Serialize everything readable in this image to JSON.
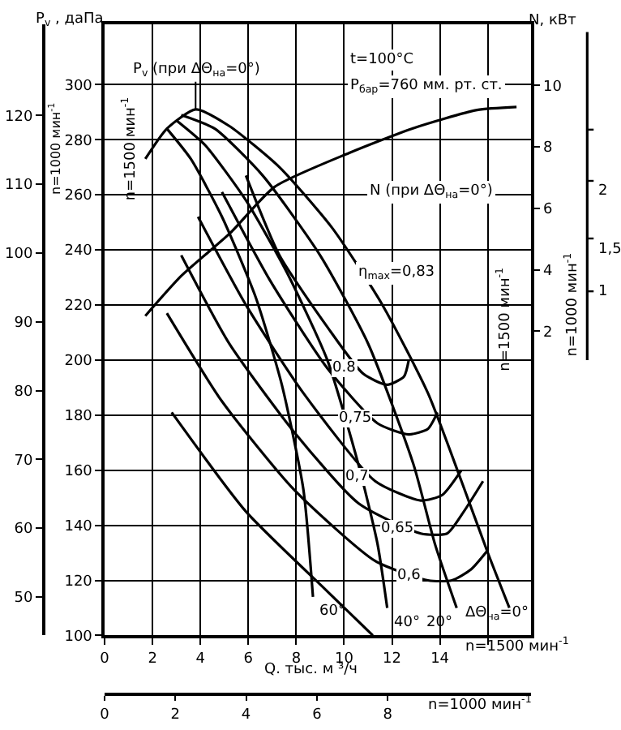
{
  "chart_data": {
    "type": "line",
    "xlabel": "Q. тыс. м ³/ч",
    "ylabel": "n=1500 мин$^{-1}$",
    "y2label": "n=1500 мин$^{-1}$",
    "y3label": "n=1000 мин$^{-1}$",
    "x2label": "n=1000 мин$^{-1}$",
    "xlim": [
      0,
      17.8
    ],
    "xticks": [
      0,
      2,
      4,
      6,
      8,
      10,
      12,
      14,
      {
        "value": 16,
        "label": null
      }
    ],
    "ylim": [
      100,
      322
    ],
    "yticks": [
      100,
      120,
      140,
      160,
      180,
      200,
      220,
      240,
      260,
      280,
      300
    ],
    "y2lim": [
      -7.9,
      12.0
    ],
    "y2ticks": [
      2,
      4,
      6,
      8,
      10
    ],
    "y3lim": [
      44.4,
      133.3
    ],
    "y3ticks": [
      50,
      60,
      70,
      80,
      90,
      100,
      110,
      120
    ],
    "x2lim": [
      0,
      12.05
    ],
    "x2ticks": [
      0,
      2,
      4,
      6,
      8
    ],
    "grid": true,
    "annotations": [
      "P$_{v}$ , даПа",
      "N, кВт",
      "n=1500 мин$^{-1}$",
      "t=100°C",
      "P$_{бар}$=760 мм. рт. ст.",
      "N (при ΔΘ$_{на}$=0°)",
      "η$_{max}$=0,83",
      "ΔΘ$_{на}$=0°",
      "2",
      "1,5",
      "1",
      "n=1000 мин$^{-1}$",
      {
        "text": "P$_{v}$ (при ΔΘ$_{на}$=0°)",
        "x": 3.8,
        "y": 291
      },
      {
        "text": "60°",
        "x": 8.7,
        "y": 114
      },
      {
        "text": "40°",
        "x": 11.8,
        "y": 110
      },
      {
        "text": "20°",
        "x": 14.7,
        "y": 110
      },
      {
        "text": "0.8",
        "x": 10.8,
        "y": 195
      },
      {
        "text": "0,75",
        "x": 11.4,
        "y": 177
      },
      {
        "text": "0,7",
        "x": 11.3,
        "y": 156
      },
      {
        "text": "0,65",
        "x": 13.2,
        "y": 137
      },
      {
        "text": "0,6",
        "x": 13.5,
        "y": 120
      }
    ],
    "series": [
      {
        "color": "#000000",
        "x": [
          1.7,
          2.6,
          3.8,
          5.2,
          7.3,
          9.5,
          11.6,
          13.5,
          14.9,
          16.0,
          16.9
        ],
        "values": [
          273,
          284,
          291,
          285,
          270,
          248,
          220,
          188,
          156,
          130,
          110
        ]
      },
      {
        "color": "#000000",
        "x": [
          3.2,
          4.6,
          6.6,
          9.0,
          11.0,
          12.9,
          13.8,
          14.7
        ],
        "values": [
          289,
          284,
          267,
          238,
          206,
          162,
          133,
          110
        ]
      },
      {
        "color": "#000000",
        "x": [
          3.0,
          4.2,
          5.9,
          7.6,
          9.3,
          10.6,
          11.4,
          11.8
        ],
        "values": [
          287,
          278,
          258,
          232,
          200,
          162,
          133,
          110
        ]
      },
      {
        "color": "#000000",
        "x": [
          2.6,
          3.6,
          4.9,
          6.3,
          7.4,
          8.3,
          8.7
        ],
        "values": [
          284,
          273,
          252,
          223,
          191,
          153,
          114
        ]
      },
      {
        "color": "#000000",
        "x": [
          5.9,
          7.3,
          9.3,
          10.8,
          11.8,
          12.5,
          12.7
        ],
        "values": [
          267,
          238,
          212,
          195,
          191,
          194,
          200
        ]
      },
      {
        "color": "#000000",
        "x": [
          4.9,
          6.9,
          9.3,
          11.4,
          12.7,
          13.5,
          13.9
        ],
        "values": [
          261,
          229,
          197,
          177,
          173,
          175,
          181
        ]
      },
      {
        "color": "#000000",
        "x": [
          3.9,
          5.9,
          8.3,
          11.3,
          13.2,
          14.1,
          14.9
        ],
        "values": [
          252,
          220,
          188,
          156,
          149,
          151,
          160
        ]
      },
      {
        "color": "#000000",
        "x": [
          3.2,
          5.2,
          7.9,
          10.6,
          13.2,
          14.3,
          15.0,
          15.8
        ],
        "values": [
          238,
          206,
          174,
          148,
          137,
          137,
          145,
          156
        ]
      },
      {
        "color": "#000000",
        "x": [
          2.6,
          4.9,
          7.9,
          11.3,
          13.5,
          14.5,
          15.3,
          16.0
        ],
        "values": [
          217,
          185,
          153,
          127,
          120,
          120,
          124,
          131
        ]
      },
      {
        "color": "#000000",
        "x": [
          2.8,
          5.9,
          9.3,
          11.2
        ],
        "values": [
          181,
          145,
          116,
          100
        ]
      },
      {
        "color": "#000000",
        "axis": "y2",
        "x": [
          1.7,
          3.2,
          5.25,
          7.1,
          10.2,
          12.85,
          15.55,
          17.2
        ],
        "values": [
          2.5,
          3.8,
          5.2,
          6.7,
          7.8,
          8.6,
          9.2,
          9.3
        ]
      }
    ]
  }
}
